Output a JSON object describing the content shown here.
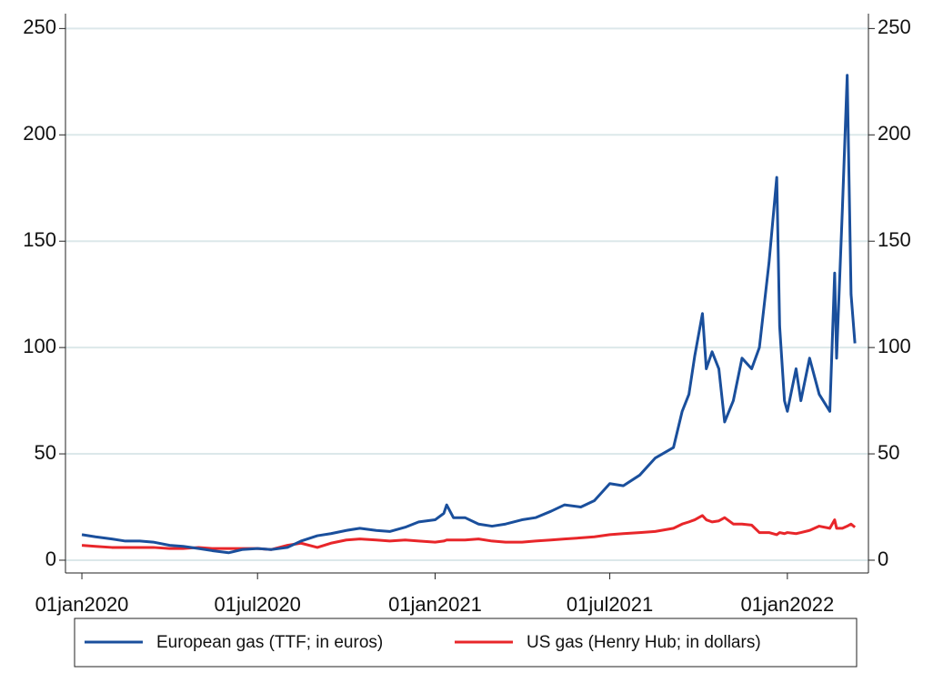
{
  "chart_data": {
    "type": "line",
    "x": [
      "2020-01-01",
      "2020-01-15",
      "2020-02-01",
      "2020-02-15",
      "2020-03-01",
      "2020-03-15",
      "2020-04-01",
      "2020-04-15",
      "2020-05-01",
      "2020-05-15",
      "2020-06-01",
      "2020-06-15",
      "2020-07-01",
      "2020-07-15",
      "2020-08-01",
      "2020-08-15",
      "2020-09-01",
      "2020-09-15",
      "2020-10-01",
      "2020-10-15",
      "2020-11-01",
      "2020-11-15",
      "2020-12-01",
      "2020-12-15",
      "2021-01-01",
      "2021-01-10",
      "2021-01-13",
      "2021-01-20",
      "2021-02-01",
      "2021-02-15",
      "2021-03-01",
      "2021-03-15",
      "2021-04-01",
      "2021-04-15",
      "2021-05-01",
      "2021-05-15",
      "2021-06-01",
      "2021-06-15",
      "2021-07-01",
      "2021-07-15",
      "2021-08-01",
      "2021-08-17",
      "2021-09-05",
      "2021-09-14",
      "2021-09-21",
      "2021-09-27",
      "2021-10-05",
      "2021-10-09",
      "2021-10-15",
      "2021-10-22",
      "2021-10-28",
      "2021-11-06",
      "2021-11-15",
      "2021-11-25",
      "2021-12-03",
      "2021-12-13",
      "2021-12-21",
      "2021-12-24",
      "2021-12-29",
      "2022-01-01",
      "2022-01-10",
      "2022-01-15",
      "2022-01-24",
      "2022-02-03",
      "2022-02-14",
      "2022-02-19",
      "2022-02-21",
      "2022-02-27",
      "2022-03-04",
      "2022-03-08",
      "2022-03-12"
    ],
    "series": [
      {
        "name": "European gas (TTF; in euros)",
        "color": "#1a4f9c",
        "values": [
          12,
          11,
          10,
          9,
          9,
          8.5,
          7,
          6.5,
          5.5,
          4.5,
          3.5,
          5,
          5.5,
          5,
          6,
          9,
          11.5,
          12.5,
          14,
          15,
          14,
          13.5,
          15.5,
          18,
          19,
          22,
          26,
          20,
          20,
          17,
          16,
          17,
          19,
          20,
          23,
          26,
          25,
          28,
          36,
          35,
          40,
          48,
          53,
          70,
          78,
          96,
          116,
          90,
          98,
          90,
          65,
          75,
          95,
          90,
          100,
          140,
          180,
          110,
          75,
          70,
          90,
          75,
          95,
          78,
          70,
          135,
          95,
          165,
          228,
          125,
          102
        ]
      },
      {
        "name": "US gas (Henry Hub; in dollars)",
        "color": "#e8262a",
        "values": [
          7,
          6.5,
          6,
          6,
          6,
          6,
          5.5,
          5.5,
          6,
          5.5,
          5.5,
          5.5,
          5.5,
          5,
          7,
          8,
          6,
          8,
          9.5,
          10,
          9.5,
          9,
          9.5,
          9,
          8.5,
          9,
          9.5,
          9.5,
          9.5,
          10,
          9,
          8.5,
          8.5,
          9,
          9.5,
          10,
          10.5,
          11,
          12,
          12.5,
          13,
          13.5,
          15,
          17,
          18,
          19,
          21,
          19,
          18,
          18.5,
          20,
          17,
          17,
          16.5,
          13,
          13,
          12,
          13,
          12.5,
          13,
          12.5,
          13,
          14,
          16,
          15,
          19,
          15,
          15,
          16,
          17,
          15.5
        ]
      }
    ],
    "xlim": [
      "2019-12-15",
      "2022-03-26"
    ],
    "xticks": [
      {
        "value": "2020-01-01",
        "label": "01jan2020"
      },
      {
        "value": "2020-07-01",
        "label": "01jul2020"
      },
      {
        "value": "2021-01-01",
        "label": "01jan2021"
      },
      {
        "value": "2021-07-01",
        "label": "01jul2021"
      },
      {
        "value": "2022-01-01",
        "label": "01jan2022"
      }
    ],
    "ylim": [
      -6,
      257
    ],
    "yticks": [
      0,
      50,
      100,
      150,
      200,
      250
    ],
    "y2lim": [
      -6,
      257
    ],
    "y2ticks": [
      0,
      50,
      100,
      150,
      200,
      250
    ],
    "grid": true,
    "legend": "bottom"
  }
}
